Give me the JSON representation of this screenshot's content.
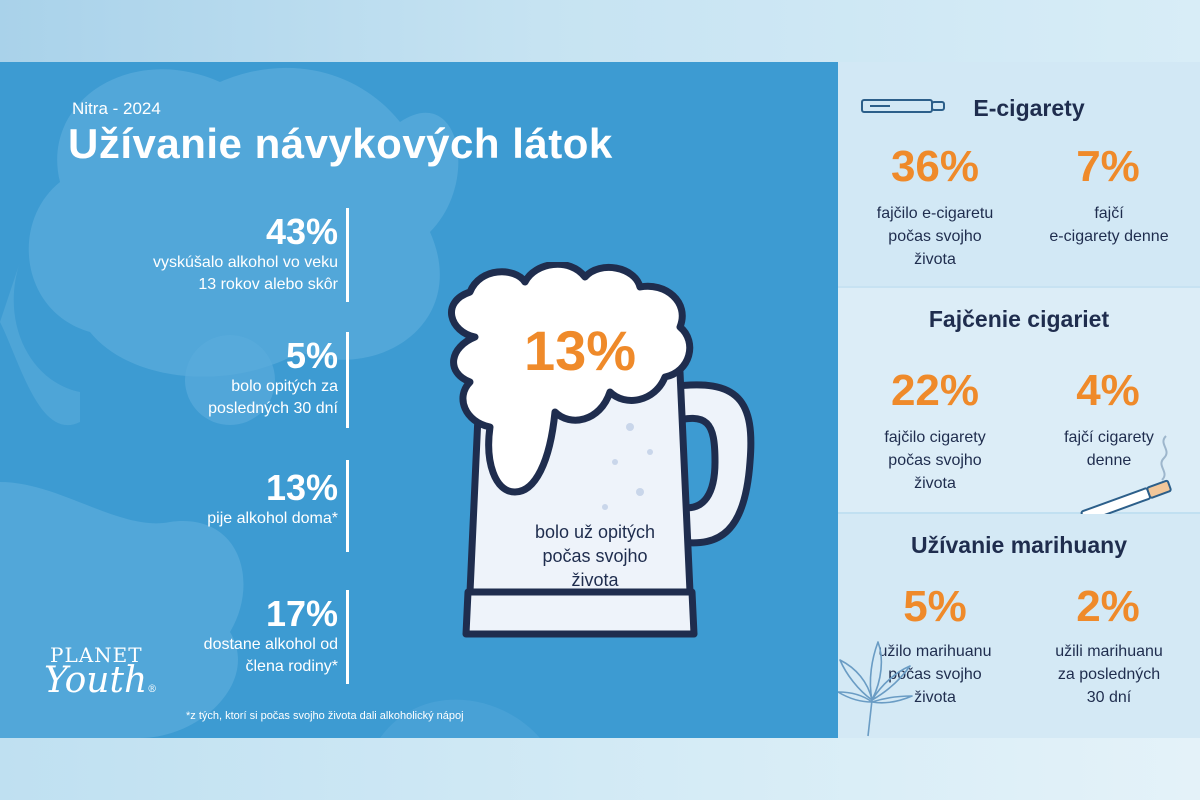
{
  "header": {
    "subtitle": "Nitra - 2024",
    "title": "Užívanie návykových látok"
  },
  "left_stats": [
    {
      "value": "43%",
      "line1": "vyskúšalo alkohol vo veku",
      "line2": "13 rokov alebo skôr"
    },
    {
      "value": "5%",
      "line1": "bolo opitých za",
      "line2": "posledných 30 dní"
    },
    {
      "value": "13%",
      "line1": "pije alkohol doma*",
      "line2": ""
    },
    {
      "value": "17%",
      "line1": "dostane alkohol od",
      "line2": "člena rodiny*"
    }
  ],
  "mug": {
    "value": "13%",
    "line1": "bolo už opitých",
    "line2": "počas svojho",
    "line3": "života"
  },
  "footnote": "*z tých, ktorí si počas svojho života dali alkoholický nápoj",
  "logo": {
    "top": "PLANET",
    "bottom": "Youth",
    "mark": "®"
  },
  "sections": {
    "ecig": {
      "title": "E-cigarety",
      "left": {
        "value": "36%",
        "line1": "fajčilo e-cigaretu",
        "line2": "počas svojho",
        "line3": "života"
      },
      "right": {
        "value": "7%",
        "line1": "fajčí",
        "line2": "e-cigarety denne"
      }
    },
    "cig": {
      "title": "Fajčenie cigariet",
      "left": {
        "value": "22%",
        "line1": "fajčilo cigarety",
        "line2": "počas svojho",
        "line3": "života"
      },
      "right": {
        "value": "4%",
        "line1": "fajčí cigarety",
        "line2": "denne"
      }
    },
    "marihuana": {
      "title": "Užívanie marihuany",
      "left": {
        "value": "5%",
        "line1": "užilo marihuanu",
        "line2": "počas svojho",
        "line3": "života"
      },
      "right": {
        "value": "2%",
        "line1": "užili marihuanu",
        "line2": "za posledných",
        "line3": "30 dní"
      }
    }
  },
  "colors": {
    "main_bg": "#3d9bd2",
    "accent_orange": "#ef8a2a",
    "navy_text": "#1f2d4e",
    "panel_light": "#d2e8f5"
  },
  "icons": [
    "e-cigarette-icon",
    "cigarette-icon",
    "cannabis-leaf-icon",
    "beer-mug-icon"
  ]
}
